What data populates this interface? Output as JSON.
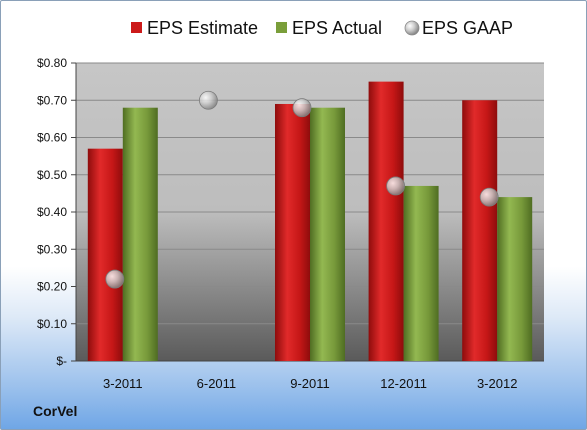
{
  "company": "CorVel",
  "colors": {
    "estimate": "#cc1a1a",
    "actual": "#7a9e3a",
    "gaap": "#b9b9b9"
  },
  "chart_data": {
    "type": "bar",
    "categories": [
      "3-2011",
      "6-2011",
      "9-2011",
      "12-2011",
      "3-2012"
    ],
    "series": [
      {
        "name": "EPS Estimate",
        "kind": "bar",
        "values": [
          0.57,
          null,
          0.69,
          0.75,
          0.7
        ]
      },
      {
        "name": "EPS Actual",
        "kind": "bar",
        "values": [
          0.68,
          null,
          0.68,
          0.47,
          0.44
        ]
      },
      {
        "name": "EPS GAAP",
        "kind": "scatter",
        "values": [
          0.22,
          0.7,
          0.68,
          0.47,
          0.44
        ]
      }
    ],
    "ylim": [
      0,
      0.8
    ],
    "yticks": [
      0,
      0.1,
      0.2,
      0.3,
      0.4,
      0.5,
      0.6,
      0.7,
      0.8
    ],
    "ytick_labels": [
      "$-",
      "$0.10",
      "$0.20",
      "$0.30",
      "$0.40",
      "$0.50",
      "$0.60",
      "$0.70",
      "$0.80"
    ],
    "legend_position": "top",
    "grid": true
  }
}
